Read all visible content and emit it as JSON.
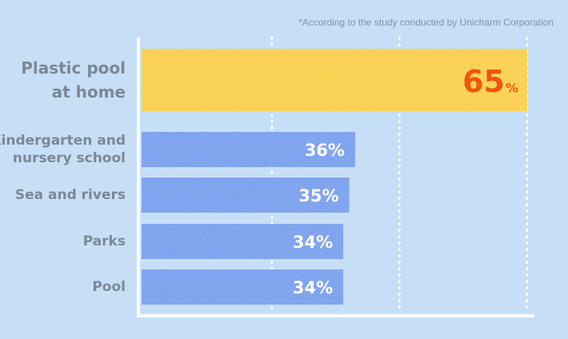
{
  "footnote": "*According to the study conducted by Unicharm Corporation",
  "chart_data": {
    "type": "bar",
    "orientation": "horizontal",
    "categories": [
      [
        "Plastic pool",
        "at home"
      ],
      [
        "Kindergarten and",
        "nursery school"
      ],
      [
        "Sea and rivers"
      ],
      [
        "Parks"
      ],
      [
        "Pool"
      ]
    ],
    "values": [
      65,
      36,
      35,
      34,
      34
    ],
    "value_labels": [
      "65",
      "36%",
      "35%",
      "34%",
      "34%"
    ],
    "value_unit": "%",
    "xlim": [
      0,
      68
    ],
    "grid": "vertical dotted",
    "highlight_color": "#fbcd1f",
    "bar_color": "#6b98ec",
    "highlight_label_color": "#f25410",
    "label_color": "#ffffff"
  }
}
